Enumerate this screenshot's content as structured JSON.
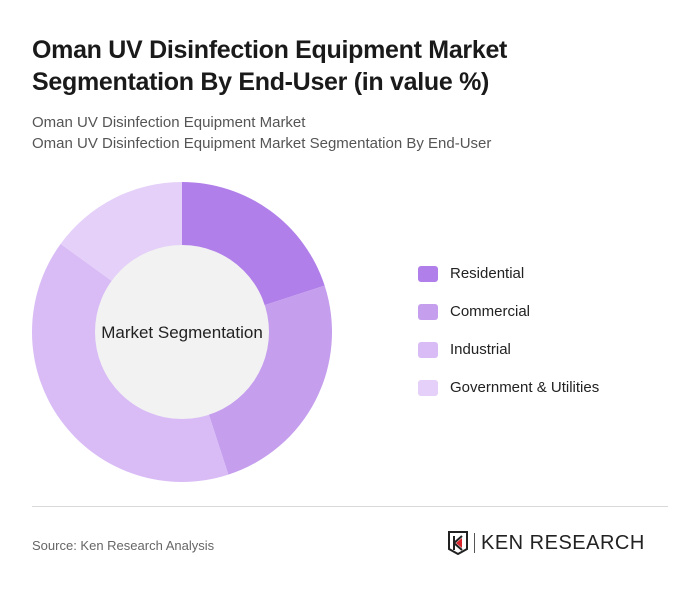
{
  "title": "Oman UV Disinfection Equipment Market Segmentation By End-User (in value %)",
  "subtitle_1": "Oman UV Disinfection Equipment Market",
  "subtitle_2": "Oman UV Disinfection Equipment Market Segmentation By End-User",
  "source": "Source: Ken Research Analysis",
  "logo_text": "KEN RESEARCH",
  "chart_data": {
    "type": "pie",
    "variant": "donut",
    "center_label": "Market Segmentation",
    "legend_position": "right",
    "series": [
      {
        "name": "Residential",
        "value": 20,
        "color": "#b17fe9"
      },
      {
        "name": "Commercial",
        "value": 25,
        "color": "#c59eee"
      },
      {
        "name": "Industrial",
        "value": 40,
        "color": "#d9bcf6"
      },
      {
        "name": "Government & Utilities",
        "value": 15,
        "color": "#e4d0f8"
      }
    ]
  }
}
